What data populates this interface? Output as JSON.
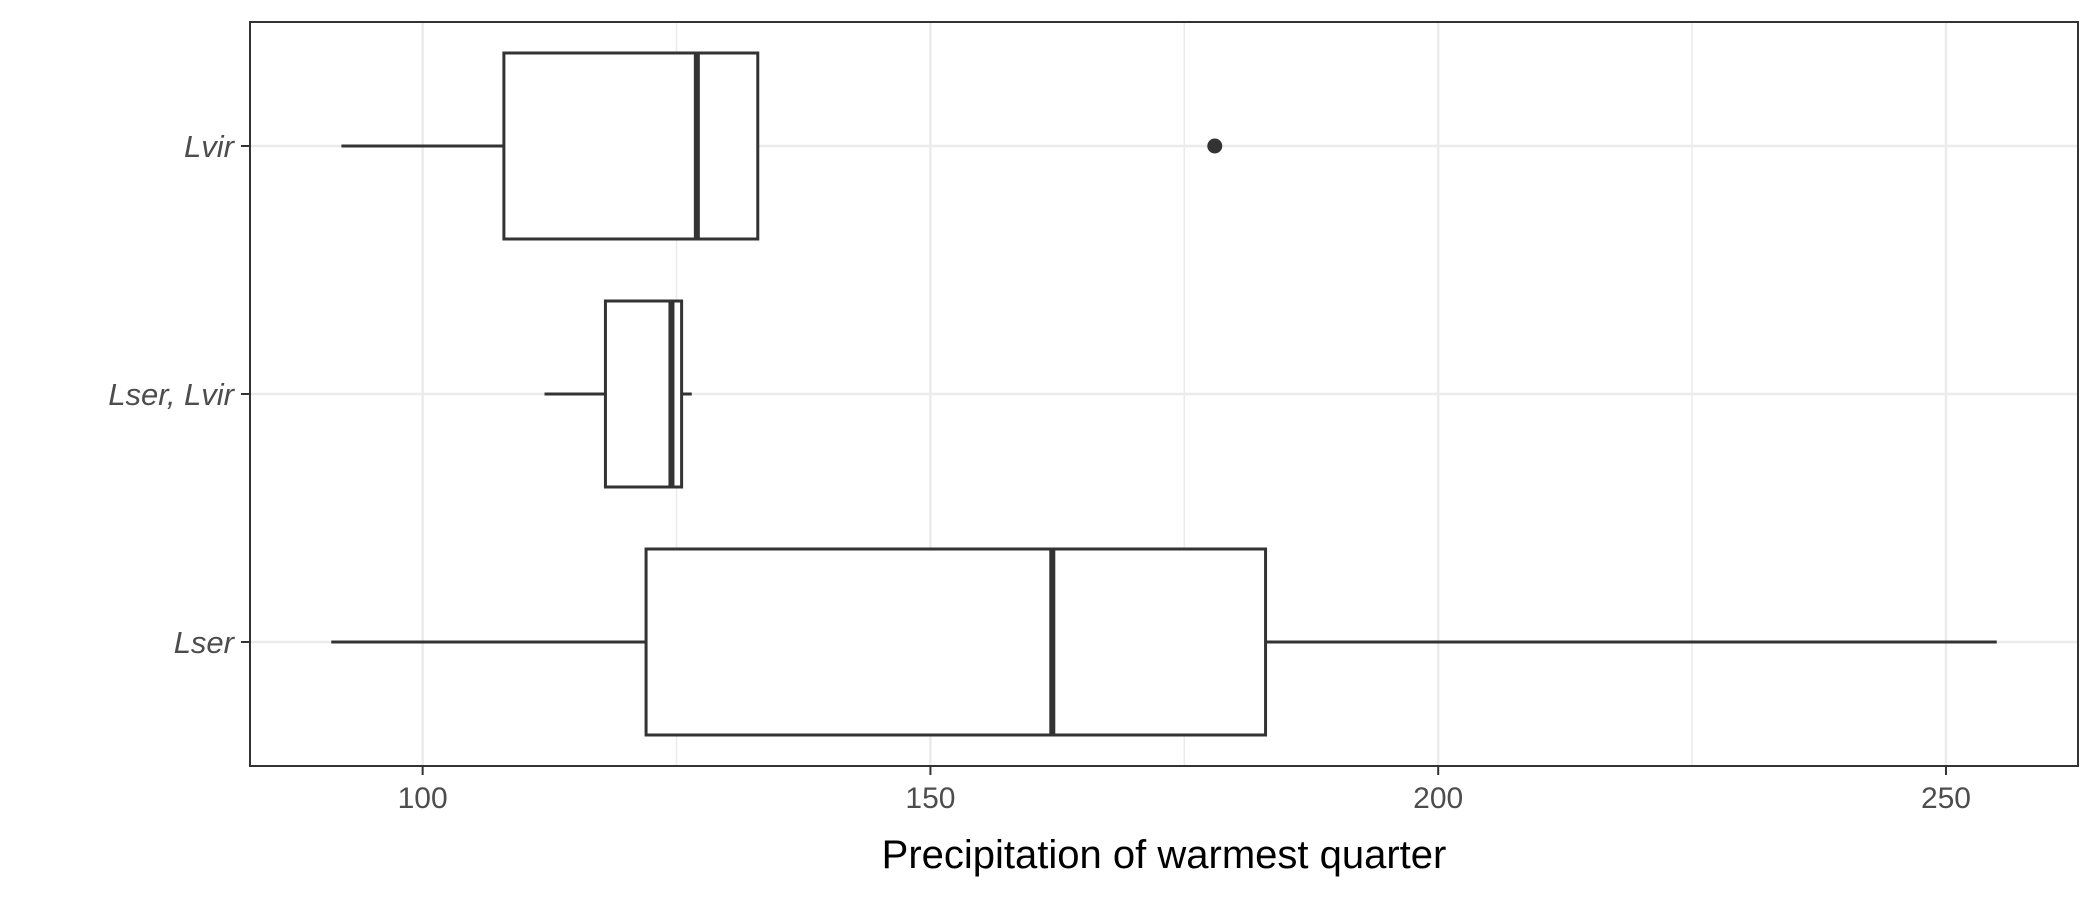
{
  "chart_data": {
    "type": "boxplot",
    "orientation": "horizontal",
    "title": "",
    "xlabel": "Precipitation of warmest quarter",
    "ylabel": "",
    "xlim": [
      83,
      263
    ],
    "x_ticks": [
      100,
      150,
      200,
      250
    ],
    "x_tick_labels": [
      "100",
      "150",
      "200",
      "250"
    ],
    "grid": true,
    "categories": [
      "Lser",
      "Lser, Lvir",
      "Lvir"
    ],
    "boxes": [
      {
        "category": "Lser",
        "whisker_low": 91,
        "q1": 122,
        "median": 162,
        "q3": 183,
        "whisker_high": 255,
        "outliers": []
      },
      {
        "category": "Lser, Lvir",
        "whisker_low": 112,
        "q1": 118,
        "median": 124.5,
        "q3": 125.5,
        "whisker_high": 126.5,
        "outliers": []
      },
      {
        "category": "Lvir",
        "whisker_low": 92,
        "q1": 108,
        "median": 127,
        "q3": 133,
        "whisker_high": 133,
        "outliers": [
          178
        ]
      }
    ],
    "colors": {
      "box_stroke": "#333333",
      "grid": "#ebebeb",
      "panel_border": "#333333",
      "box_fill": "#ffffff"
    }
  }
}
